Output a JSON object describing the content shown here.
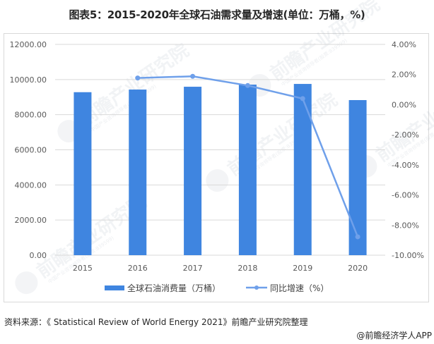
{
  "title": "图表5：2015-2020年全球石油需求量及增速(单位：万桶，%)",
  "source": "资料来源：《 Statistical Review of World Energy 2021》前瞻产业研究院整理",
  "credit": "@前瞻经济学人APP",
  "watermark": {
    "text": "前瞻产业研究院",
    "sub": "中国产业咨询领导者(股票:839599)"
  },
  "colors": {
    "bar": "#3f85e0",
    "line": "#6fa0ea",
    "grid": "#d9d9d9",
    "frame": "#d9d9d9"
  },
  "chart_data": {
    "type": "bar+line",
    "title": "图表5：2015-2020年全球石油需求量及增速(单位：万桶，%)",
    "categories": [
      "2015",
      "2016",
      "2017",
      "2018",
      "2019",
      "2020"
    ],
    "series": [
      {
        "name": "全球石油消费量（万桶）",
        "type": "bar",
        "axis": "left",
        "values": [
          9280,
          9430,
          9590,
          9710,
          9750,
          8830
        ]
      },
      {
        "name": "同比增速（%）",
        "type": "line",
        "axis": "right",
        "values": [
          null,
          1.77,
          1.88,
          1.27,
          0.4,
          -8.78
        ]
      }
    ],
    "left_axis": {
      "ylim": [
        0,
        12000
      ],
      "ticks": [
        "0.00",
        "2000.00",
        "4000.00",
        "6000.00",
        "8000.00",
        "10000.00",
        "12000.00"
      ]
    },
    "right_axis": {
      "ylim": [
        -10,
        4
      ],
      "ticks": [
        "-10.00%",
        "-8.00%",
        "-6.00%",
        "-4.00%",
        "-2.00%",
        "0.00%",
        "2.00%",
        "4.00%"
      ]
    },
    "xlabel": "",
    "ylabel": "",
    "grid": true,
    "legend": {
      "placement": "bottom",
      "entries": [
        "全球石油消费量（万桶）",
        "同比增速（%）"
      ]
    }
  }
}
